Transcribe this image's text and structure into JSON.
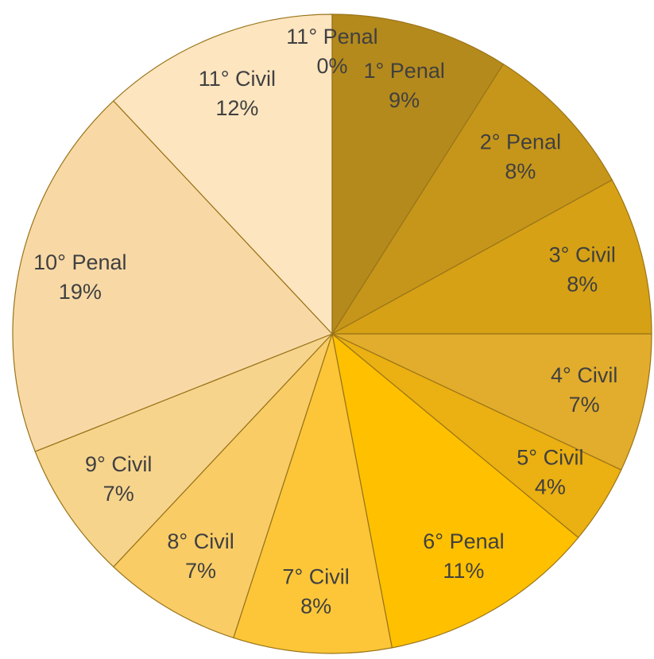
{
  "chart_data": {
    "type": "pie",
    "categories": [
      "1° Penal",
      "2° Penal",
      "3° Civil",
      "4° Civil",
      "5° Civil",
      "6° Penal",
      "7° Civil",
      "8° Civil",
      "9° Civil",
      "10° Penal",
      "11° Civil",
      "11° Penal"
    ],
    "values": [
      9,
      8,
      8,
      7,
      4,
      11,
      8,
      7,
      7,
      19,
      12,
      0
    ],
    "value_labels": [
      "9%",
      "8%",
      "8%",
      "7%",
      "4%",
      "11%",
      "8%",
      "7%",
      "7%",
      "19%",
      "12%",
      "0%"
    ],
    "colors": [
      "#b58a1c",
      "#c6961a",
      "#d6a114",
      "#e2ad2c",
      "#ebb011",
      "#ffc000",
      "#fcc638",
      "#f9cc66",
      "#f6d48c",
      "#f8d9a6",
      "#fde5c0",
      "#fde5c0"
    ]
  }
}
